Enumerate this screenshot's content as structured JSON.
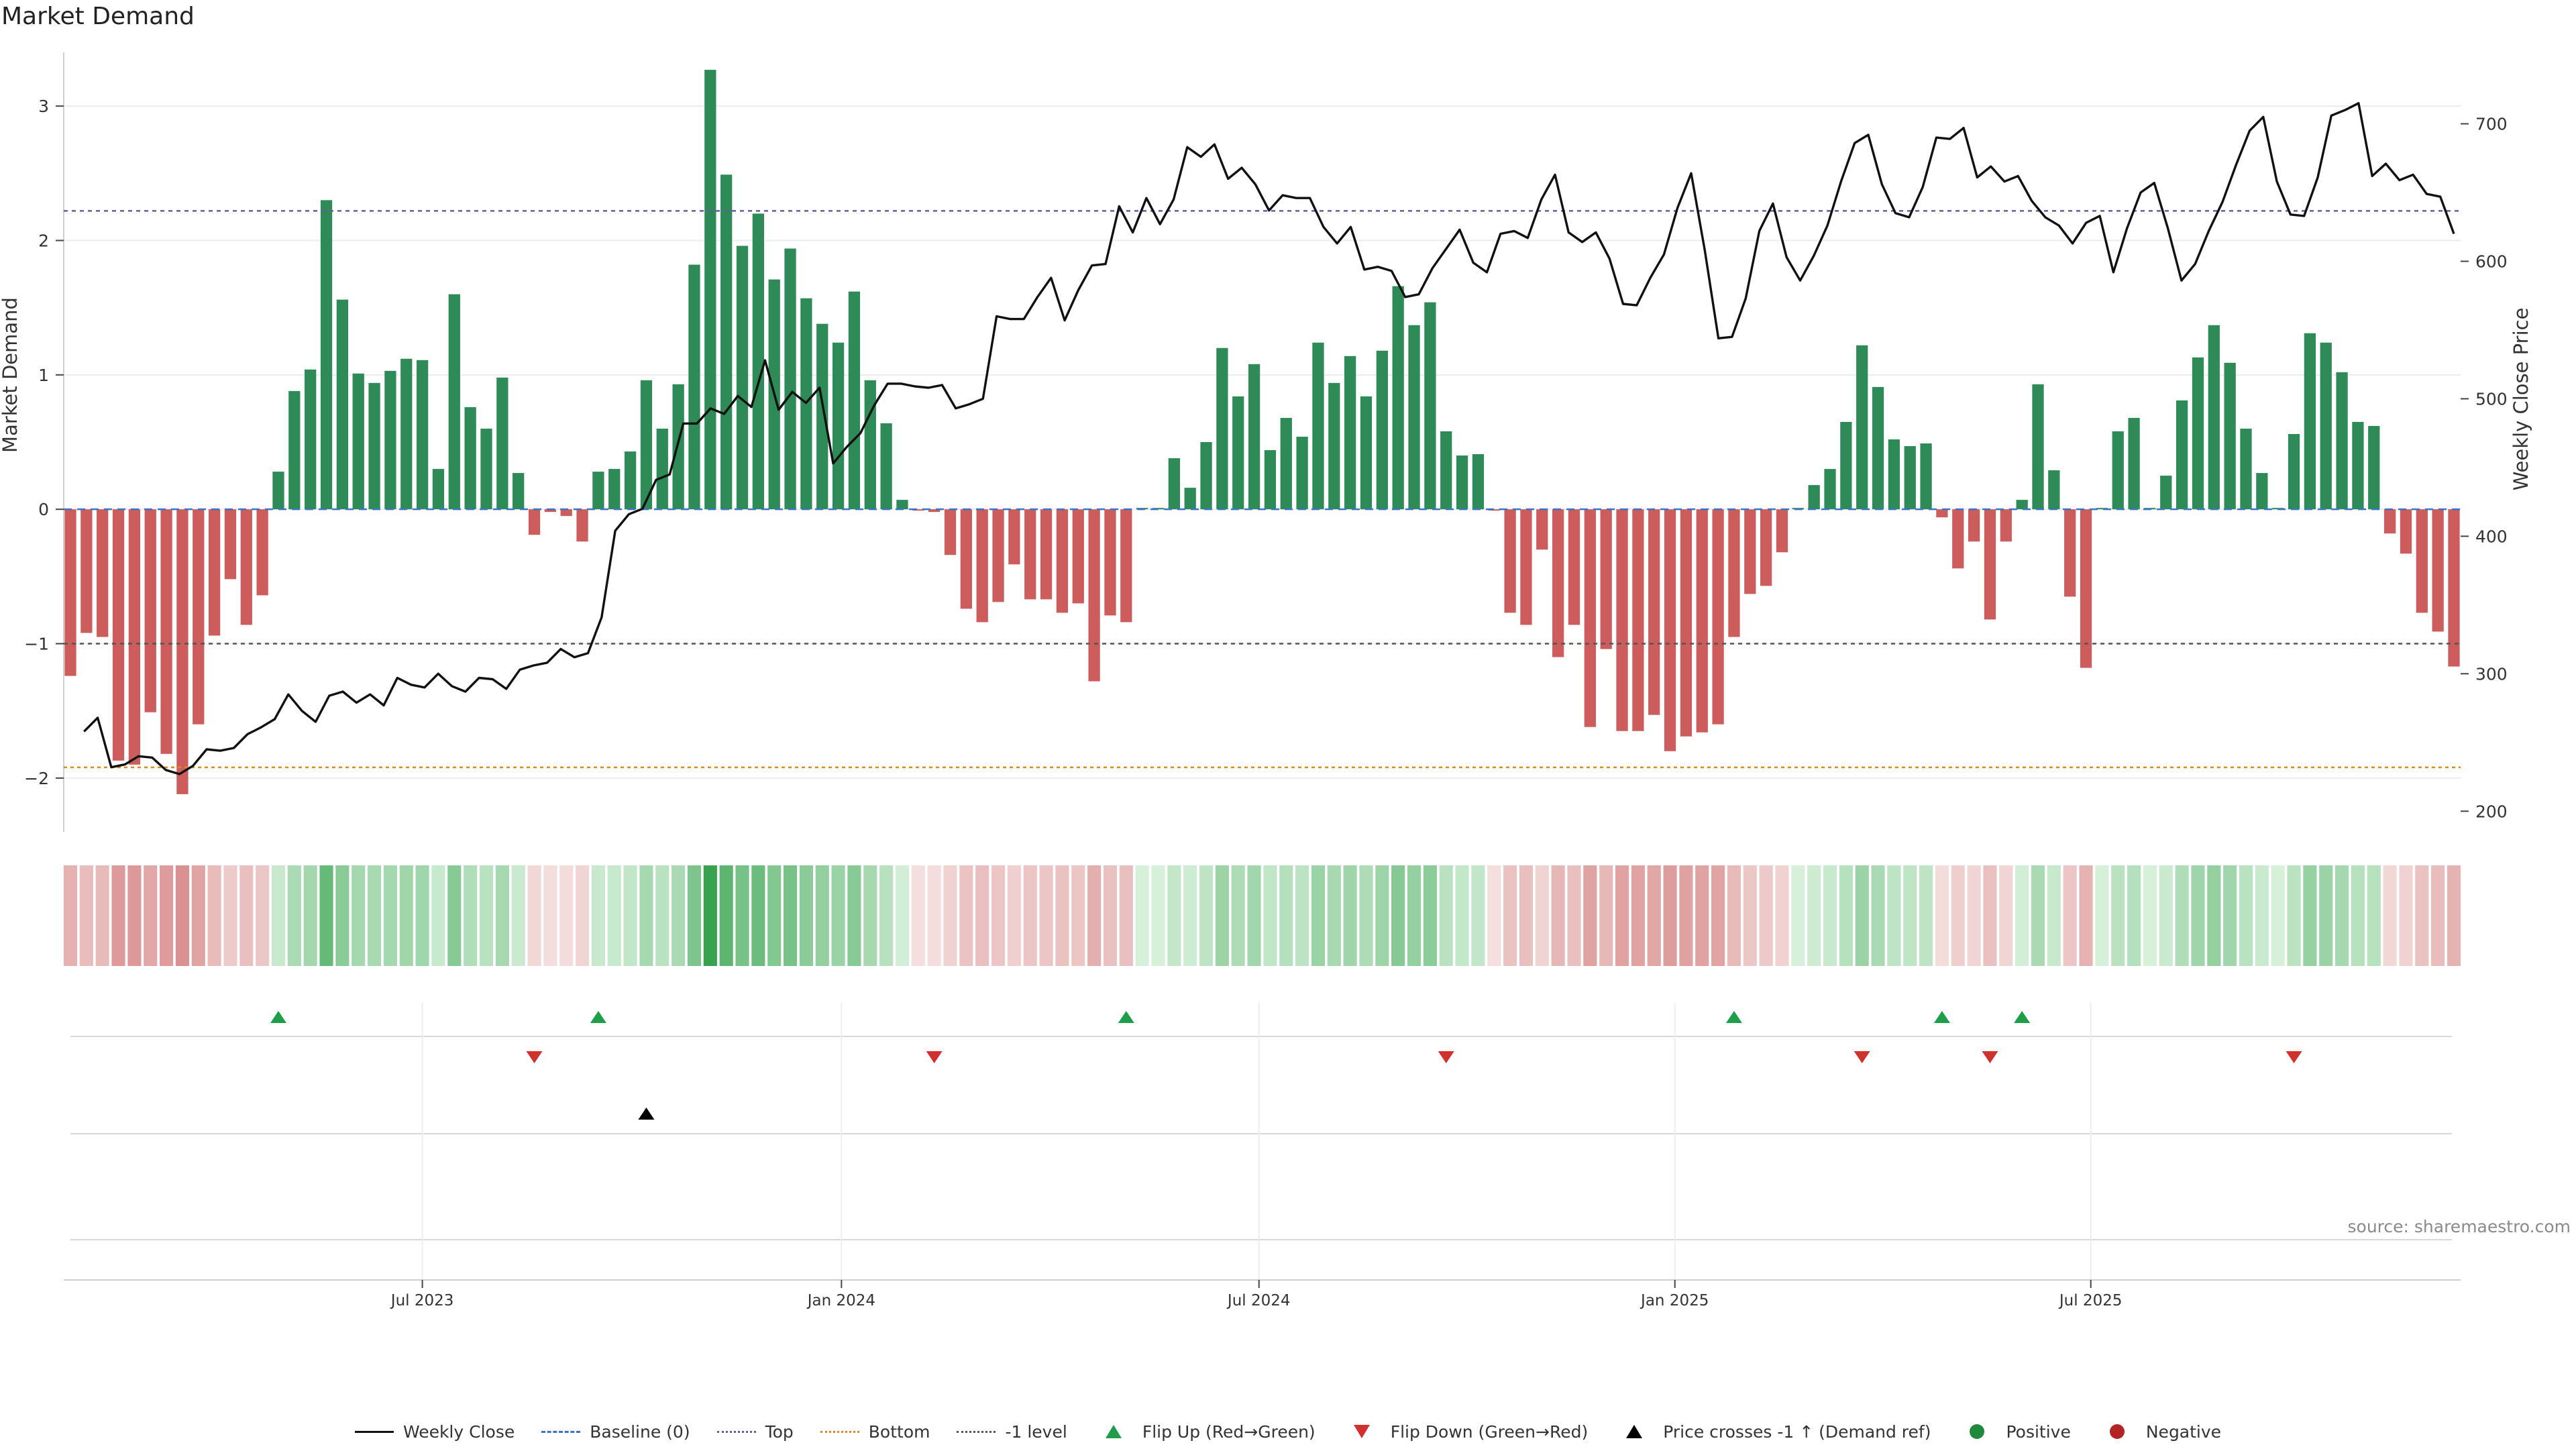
{
  "title": "Market Demand",
  "source": "source: sharemaestro.com",
  "chart_data": {
    "type": "bar",
    "title": "Market Demand",
    "ylabel": "Market Demand",
    "y2label": "Weekly Close Price",
    "ylim": [
      -2.4,
      3.4
    ],
    "y2lim": [
      185,
      752
    ],
    "yticks": [
      -2,
      -1,
      0,
      1,
      2,
      3
    ],
    "y2ticks": [
      200,
      300,
      400,
      500,
      600,
      700
    ],
    "ytick_labels": [
      "−2",
      "−1",
      "0",
      "1",
      "2",
      "3"
    ],
    "y2tick_labels": [
      "200",
      "300",
      "400",
      "500",
      "600",
      "700"
    ],
    "xtick_positions": [
      22,
      48.2,
      74.3,
      100.3,
      126.3
    ],
    "xtick_labels": [
      "Jul 2023",
      "Jan 2024",
      "Jul 2024",
      "Jan 2025",
      "Jul 2025"
    ],
    "reference_lines": {
      "top": 2.22,
      "bottom": -1.92,
      "minus_one": -1.0,
      "baseline": 0
    },
    "demand": [
      -1.24,
      -0.92,
      -0.95,
      -1.87,
      -1.9,
      -1.51,
      -1.82,
      -2.12,
      -1.6,
      -0.94,
      -0.52,
      -0.86,
      -0.64,
      0.28,
      0.88,
      1.04,
      2.3,
      1.56,
      1.01,
      0.94,
      1.03,
      1.12,
      1.11,
      0.3,
      1.6,
      0.76,
      0.6,
      0.98,
      0.27,
      -0.19,
      -0.02,
      -0.05,
      -0.24,
      0.28,
      0.3,
      0.43,
      0.96,
      0.6,
      0.93,
      1.82,
      3.27,
      2.49,
      1.96,
      2.2,
      1.71,
      1.94,
      1.57,
      1.38,
      1.24,
      1.62,
      0.96,
      0.64,
      0.07,
      -0.01,
      -0.02,
      -0.34,
      -0.74,
      -0.84,
      -0.69,
      -0.41,
      -0.67,
      -0.67,
      -0.77,
      -0.7,
      -1.28,
      -0.79,
      -0.84,
      0.01,
      0.01,
      0.38,
      0.16,
      0.5,
      1.2,
      0.84,
      1.08,
      0.44,
      0.68,
      0.54,
      1.24,
      0.94,
      1.14,
      0.84,
      1.18,
      1.66,
      1.37,
      1.54,
      0.58,
      0.4,
      0.41,
      -0.01,
      -0.77,
      -0.86,
      -0.3,
      -1.1,
      -0.86,
      -1.62,
      -1.04,
      -1.65,
      -1.65,
      -1.53,
      -1.8,
      -1.69,
      -1.66,
      -1.6,
      -0.95,
      -0.63,
      -0.57,
      -0.32,
      0.01,
      0.18,
      0.3,
      0.65,
      1.22,
      0.91,
      0.52,
      0.47,
      0.49,
      -0.06,
      -0.44,
      -0.24,
      -0.82,
      -0.24,
      0.07,
      0.93,
      0.29,
      -0.65,
      -1.18,
      0.01,
      0.58,
      0.68,
      0.01,
      0.25,
      0.81,
      1.13,
      1.37,
      1.09,
      0.6,
      0.27,
      0.01,
      0.56,
      1.31,
      1.24,
      1.02,
      0.65,
      0.62,
      -0.18,
      -0.33,
      -0.77,
      -0.91,
      -1.17
    ],
    "weekly_close": [
      null,
      258,
      268,
      232,
      234,
      240,
      239,
      230,
      227,
      233,
      245,
      244,
      246,
      256,
      261,
      267,
      285,
      273,
      265,
      284,
      287,
      279,
      285,
      277,
      297,
      292,
      290,
      300,
      291,
      287,
      297,
      296,
      289,
      303,
      306,
      308,
      318,
      312,
      315,
      341,
      404,
      416,
      420,
      441,
      445,
      482,
      482,
      493,
      489,
      502,
      494,
      528,
      492,
      505,
      497,
      508,
      453,
      465,
      475,
      495,
      511,
      511,
      509,
      508,
      510,
      493,
      496,
      500,
      560,
      558,
      558,
      574,
      588,
      557,
      579,
      597,
      598,
      640,
      621,
      646,
      627,
      645,
      683,
      676,
      685,
      660,
      668,
      656,
      637,
      648,
      646,
      646,
      625,
      613,
      625,
      594,
      596,
      593,
      574,
      576,
      595,
      609,
      623,
      599,
      592,
      620,
      622,
      617,
      645,
      663,
      621,
      614,
      621,
      602,
      569,
      568,
      588,
      605,
      639,
      664,
      608,
      544,
      545,
      573,
      622,
      642,
      603,
      586,
      604,
      626,
      658,
      686,
      692,
      656,
      635,
      632,
      654,
      690,
      689,
      697,
      661,
      669,
      658,
      662,
      644,
      632,
      626,
      613,
      628,
      633,
      592,
      624,
      650,
      657,
      624,
      586,
      598,
      622,
      643,
      670,
      695,
      705,
      658,
      634,
      633,
      661,
      706,
      710,
      715,
      662,
      671,
      659,
      663,
      649,
      647,
      620
    ],
    "flip_up_index": [
      13,
      33,
      66,
      104,
      117,
      122
    ],
    "flip_down_index": [
      29,
      54,
      86,
      112,
      120,
      139
    ],
    "price_cross_index": [
      36
    ],
    "series_names": {
      "close": "Weekly Close",
      "baseline": "Baseline (0)",
      "top": "Top",
      "bottom": "Bottom",
      "minus_one": "-1 level",
      "flip_up": "Flip Up (Red→Green)",
      "flip_down": "Flip Down (Green→Red)",
      "price_cross": "Price crosses -1 ↑ (Demand ref)",
      "positive": "Positive",
      "negative": "Negative"
    },
    "colors": {
      "positive": "#2e8b57",
      "negative": "#cd5c5c",
      "close": "#111111",
      "top": "#6a5aa8",
      "bottom": "#e08a1e",
      "minus_one": "#555555",
      "flip_up": "#1f9e4a",
      "flip_down": "#d0312d",
      "price_cross": "#000000"
    }
  }
}
